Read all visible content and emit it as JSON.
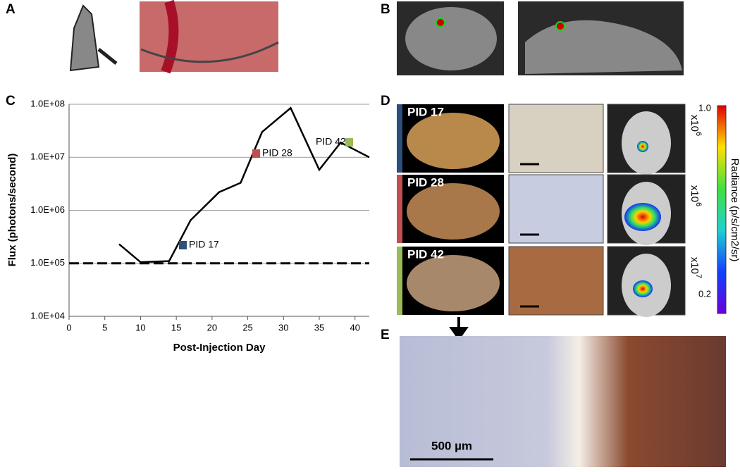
{
  "panels": {
    "a": "A",
    "b": "B",
    "c": "C",
    "d": "D",
    "e": "E"
  },
  "chart_data": {
    "type": "line",
    "x": [
      7,
      10,
      14,
      17,
      21,
      24,
      27,
      31,
      35,
      38,
      42
    ],
    "series": [
      {
        "color": "#000000",
        "values": [
          230000,
          105000,
          110000,
          650000,
          2200000,
          3300000,
          30000000,
          85000000,
          5800000,
          19000000,
          10000000
        ]
      }
    ],
    "baseline": 100000,
    "xlabel": "Post-Injection Day",
    "ylabel": "Flux (photons/second)",
    "xlim": [
      0,
      42
    ],
    "xticks": [
      0,
      5,
      10,
      15,
      20,
      25,
      30,
      35,
      40
    ],
    "ylim": [
      10000,
      100000000
    ],
    "log_y": true,
    "grid": true,
    "yticks": [
      {
        "value": 10000,
        "label": "1.0E+04"
      },
      {
        "value": 100000,
        "label": "1.0E+05"
      },
      {
        "value": 1000000,
        "label": "1.0E+06"
      },
      {
        "value": 10000000,
        "label": "1.0E+07"
      },
      {
        "value": 100000000,
        "label": "1.0E+08"
      }
    ],
    "annotations": [
      {
        "text": "PID 17",
        "color": "#2c4f7c"
      },
      {
        "text": "PID 28",
        "color": "#c0504d"
      },
      {
        "text": "PID 42",
        "color": "#9bbb59"
      }
    ]
  },
  "histology": {
    "rows": [
      "PID 17",
      "PID 28",
      "PID 42"
    ],
    "colorbar": {
      "max": "1.0",
      "min": "0.2",
      "label": "Radiance (p/s/cm2/sr)"
    },
    "multipliers": [
      {
        "base": "x10",
        "exp": "6"
      },
      {
        "base": "x10",
        "exp": "6"
      },
      {
        "base": "x10",
        "exp": "7"
      }
    ]
  },
  "scale_bar": "500 µm"
}
